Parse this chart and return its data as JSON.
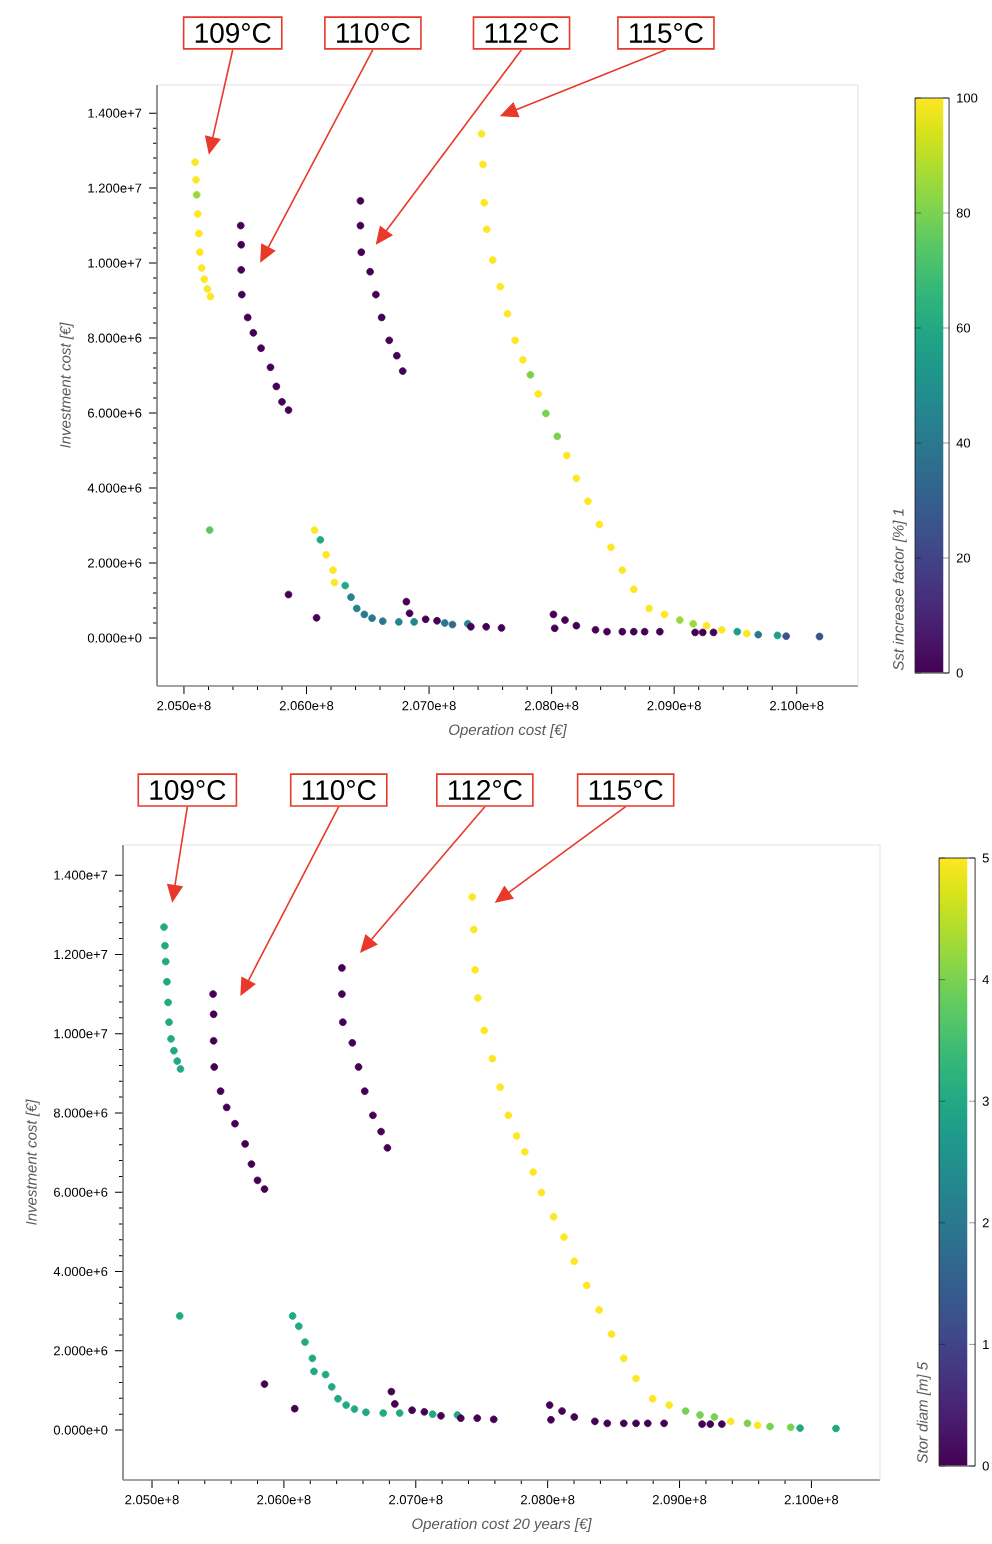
{
  "chart_data": [
    {
      "type": "scatter",
      "xlabel": "Operation cost [€]",
      "ylabel": "Investment cost [€]",
      "clabel": "Sst increase factor [%] 1",
      "marker": "circle",
      "xlim": [
        204780000.0,
        210500000.0
      ],
      "ylim": [
        -1280000.0,
        14750000.0
      ],
      "xticks": [
        {
          "value": 205000000.0,
          "label": "2.050e+8"
        },
        {
          "value": 206000000.0,
          "label": "2.060e+8"
        },
        {
          "value": 207000000.0,
          "label": "2.070e+8"
        },
        {
          "value": 208000000.0,
          "label": "2.080e+8"
        },
        {
          "value": 209000000.0,
          "label": "2.090e+8"
        },
        {
          "value": 210000000.0,
          "label": "2.100e+8"
        }
      ],
      "yticks": [
        {
          "value": 0,
          "label": "0.000e+0"
        },
        {
          "value": 2000000.0,
          "label": "2.000e+6"
        },
        {
          "value": 4000000.0,
          "label": "4.000e+6"
        },
        {
          "value": 6000000.0,
          "label": "6.000e+6"
        },
        {
          "value": 8000000.0,
          "label": "8.000e+6"
        },
        {
          "value": 10000000.0,
          "label": "1.000e+7"
        },
        {
          "value": 12000000.0,
          "label": "1.200e+7"
        },
        {
          "value": 14000000.0,
          "label": "1.400e+7"
        }
      ],
      "clim": [
        0,
        100
      ],
      "cticks": [
        0,
        20,
        40,
        60,
        80,
        100
      ],
      "annotations": [
        "109°C",
        "110°C",
        "112°C",
        "115°C"
      ],
      "x": [
        205091000.0,
        205098000.0,
        205104000.0,
        205113000.0,
        205122000.0,
        205129000.0,
        205144000.0,
        205166000.0,
        205191000.0,
        205216000.0,
        205210000.0,
        205463000.0,
        205467000.0,
        205467000.0,
        205472000.0,
        205520000.0,
        205566000.0,
        205629000.0,
        205706000.0,
        205754000.0,
        205800000.0,
        205853000.0,
        206440000.0,
        206440000.0,
        206447000.0,
        206519000.0,
        206566000.0,
        206613000.0,
        206675000.0,
        206737000.0,
        206785000.0,
        207428000.0,
        207440000.0,
        207450000.0,
        207471000.0,
        207519000.0,
        207581000.0,
        207640000.0,
        207702000.0,
        207765000.0,
        207827000.0,
        207890000.0,
        207953000.0,
        208046000.0,
        208124000.0,
        208202000.0,
        208296000.0,
        208390000.0,
        208484000.0,
        208577000.0,
        208670000.0,
        208796000.0,
        208921000.0,
        209046000.0,
        209155000.0,
        209264000.0,
        209389000.0,
        209515000.0,
        209592000.0,
        209686000.0,
        209843000.0,
        209914000.0,
        210186000.0,
        206066000.0,
        206113000.0,
        206160000.0,
        206216000.0,
        206228000.0,
        206316000.0,
        206363000.0,
        206410000.0,
        206472000.0,
        206535000.0,
        206622000.0,
        206753000.0,
        206878000.0,
        206972000.0,
        207065000.0,
        207128000.0,
        207191000.0,
        207316000.0,
        207341000.0,
        207466000.0,
        207591000.0,
        205853000.0,
        206082000.0,
        206815000.0,
        206841000.0,
        208015000.0,
        208109000.0,
        208202000.0,
        208025000.0,
        208358000.0,
        208452000.0,
        208577000.0,
        208670000.0,
        208759000.0,
        208883000.0,
        209171000.0,
        209233000.0,
        209321000.0
      ],
      "values": [
        12690000.0,
        12220000.0,
        11820000.0,
        11310000.0,
        10790000.0,
        10290000.0,
        9870000.0,
        9570000.0,
        9310000.0,
        9110000.0,
        2880000.0,
        11000000.0,
        10490000.0,
        9820000.0,
        9160000.0,
        8550000.0,
        8140000.0,
        7730000.0,
        7220000.0,
        6710000.0,
        6300000.0,
        6080000.0,
        11660000.0,
        11000000.0,
        10290000.0,
        9770000.0,
        9160000.0,
        8550000.0,
        7940000.0,
        7530000.0,
        7120000.0,
        13450000.0,
        12630000.0,
        11610000.0,
        10900000.0,
        10080000.0,
        9370000.0,
        8650000.0,
        7940000.0,
        7420000.0,
        7020000.0,
        6510000.0,
        5990000.0,
        5380000.0,
        4870000.0,
        4260000.0,
        3650000.0,
        3030000.0,
        2420000.0,
        1810000.0,
        1300000.0,
        790000.0,
        630000.0,
        480000.0,
        380000.0,
        330000.0,
        220000.0,
        170000.0,
        120000.0,
        90000.0,
        70000.0,
        50000.0,
        40000.0,
        2880000.0,
        2620000.0,
        2220000.0,
        1810000.0,
        1480000.0,
        1400000.0,
        1090000.0,
        790000.0,
        630000.0,
        530000.0,
        450000.0,
        430000.0,
        430000.0,
        500000.0,
        460000.0,
        400000.0,
        360000.0,
        380000.0,
        300000.0,
        300000.0,
        270000.0,
        1160000.0,
        540000.0,
        970000.0,
        660000.0,
        630000.0,
        480000.0,
        330000.0,
        260000.0,
        220000.0,
        170000.0,
        170000.0,
        170000.0,
        170000.0,
        170000.0,
        150000.0,
        150000.0,
        150000.0
      ],
      "cvalues": [
        100,
        100,
        85,
        100,
        100,
        100,
        100,
        100,
        100,
        100,
        75,
        0,
        0,
        0,
        0,
        0,
        0,
        0,
        0,
        0,
        0,
        0,
        0,
        0,
        0,
        0,
        0,
        0,
        0,
        0,
        0,
        100,
        100,
        100,
        100,
        100,
        100,
        100,
        100,
        100,
        80,
        100,
        80,
        80,
        100,
        100,
        100,
        100,
        100,
        100,
        100,
        100,
        100,
        85,
        85,
        100,
        100,
        55,
        100,
        40,
        55,
        25,
        25,
        100,
        60,
        100,
        100,
        100,
        60,
        45,
        45,
        40,
        40,
        40,
        45,
        45,
        0,
        0,
        40,
        35,
        45,
        0,
        0,
        0,
        0,
        0,
        0,
        0,
        0,
        0,
        0,
        0,
        0,
        0,
        0,
        0,
        0,
        0,
        0,
        0,
        0
      ]
    },
    {
      "type": "scatter",
      "xlabel": "Operation cost 20 years [€]",
      "ylabel": "Investment cost [€]",
      "clabel": "Stor diam [m] 5",
      "marker": "circle",
      "xlim": [
        204780000.0,
        210520000.0
      ],
      "ylim": [
        -1260000.0,
        14760000.0
      ],
      "xticks": [
        {
          "value": 205000000.0,
          "label": "2.050e+8"
        },
        {
          "value": 206000000.0,
          "label": "2.060e+8"
        },
        {
          "value": 207000000.0,
          "label": "2.070e+8"
        },
        {
          "value": 208000000.0,
          "label": "2.080e+8"
        },
        {
          "value": 209000000.0,
          "label": "2.090e+8"
        },
        {
          "value": 210000000.0,
          "label": "2.100e+8"
        }
      ],
      "yticks": [
        {
          "value": 0,
          "label": "0.000e+0"
        },
        {
          "value": 2000000.0,
          "label": "2.000e+6"
        },
        {
          "value": 4000000.0,
          "label": "4.000e+6"
        },
        {
          "value": 6000000.0,
          "label": "6.000e+6"
        },
        {
          "value": 8000000.0,
          "label": "8.000e+6"
        },
        {
          "value": 10000000.0,
          "label": "1.000e+7"
        },
        {
          "value": 12000000.0,
          "label": "1.200e+7"
        },
        {
          "value": 14000000.0,
          "label": "1.400e+7"
        }
      ],
      "clim": [
        0,
        5
      ],
      "cticks": [
        0,
        1,
        2,
        3,
        4,
        5
      ],
      "annotations": [
        "109°C",
        "110°C",
        "112°C",
        "115°C"
      ],
      "x": [
        205091000.0,
        205098000.0,
        205104000.0,
        205113000.0,
        205122000.0,
        205129000.0,
        205144000.0,
        205166000.0,
        205191000.0,
        205216000.0,
        205210000.0,
        205463000.0,
        205467000.0,
        205467000.0,
        205472000.0,
        205520000.0,
        205566000.0,
        205629000.0,
        205706000.0,
        205754000.0,
        205800000.0,
        205853000.0,
        206440000.0,
        206440000.0,
        206447000.0,
        206519000.0,
        206566000.0,
        206613000.0,
        206675000.0,
        206737000.0,
        206785000.0,
        207428000.0,
        207440000.0,
        207450000.0,
        207471000.0,
        207519000.0,
        207581000.0,
        207640000.0,
        207702000.0,
        207765000.0,
        207827000.0,
        207890000.0,
        207953000.0,
        208046000.0,
        208124000.0,
        208202000.0,
        208296000.0,
        208390000.0,
        208484000.0,
        208577000.0,
        208670000.0,
        208796000.0,
        208921000.0,
        209046000.0,
        209155000.0,
        209264000.0,
        209389000.0,
        209515000.0,
        209592000.0,
        209686000.0,
        209843000.0,
        209914000.0,
        210186000.0,
        206066000.0,
        206113000.0,
        206160000.0,
        206216000.0,
        206228000.0,
        206316000.0,
        206363000.0,
        206410000.0,
        206472000.0,
        206535000.0,
        206622000.0,
        206753000.0,
        206878000.0,
        206972000.0,
        207065000.0,
        207128000.0,
        207191000.0,
        207316000.0,
        207341000.0,
        207466000.0,
        207591000.0,
        205853000.0,
        206082000.0,
        206815000.0,
        206841000.0,
        208015000.0,
        208109000.0,
        208202000.0,
        208025000.0,
        208358000.0,
        208452000.0,
        208577000.0,
        208670000.0,
        208759000.0,
        208883000.0,
        209171000.0,
        209233000.0,
        209321000.0
      ],
      "values": [
        12690000.0,
        12220000.0,
        11820000.0,
        11310000.0,
        10790000.0,
        10290000.0,
        9870000.0,
        9570000.0,
        9310000.0,
        9110000.0,
        2880000.0,
        11000000.0,
        10490000.0,
        9820000.0,
        9160000.0,
        8550000.0,
        8140000.0,
        7730000.0,
        7220000.0,
        6710000.0,
        6300000.0,
        6080000.0,
        11660000.0,
        11000000.0,
        10290000.0,
        9770000.0,
        9160000.0,
        8550000.0,
        7940000.0,
        7530000.0,
        7120000.0,
        13450000.0,
        12630000.0,
        11610000.0,
        10900000.0,
        10080000.0,
        9370000.0,
        8650000.0,
        7940000.0,
        7420000.0,
        7020000.0,
        6510000.0,
        5990000.0,
        5380000.0,
        4870000.0,
        4260000.0,
        3650000.0,
        3030000.0,
        2420000.0,
        1810000.0,
        1300000.0,
        790000.0,
        630000.0,
        480000.0,
        380000.0,
        330000.0,
        220000.0,
        170000.0,
        120000.0,
        90000.0,
        70000.0,
        50000.0,
        40000.0,
        2880000.0,
        2620000.0,
        2220000.0,
        1810000.0,
        1480000.0,
        1400000.0,
        1090000.0,
        790000.0,
        630000.0,
        530000.0,
        450000.0,
        430000.0,
        430000.0,
        500000.0,
        460000.0,
        400000.0,
        360000.0,
        380000.0,
        300000.0,
        300000.0,
        270000.0,
        1160000.0,
        540000.0,
        970000.0,
        660000.0,
        630000.0,
        480000.0,
        330000.0,
        260000.0,
        220000.0,
        170000.0,
        170000.0,
        170000.0,
        170000.0,
        170000.0,
        150000.0,
        150000.0,
        150000.0
      ],
      "cvalues": [
        3,
        3,
        3,
        3,
        3,
        3,
        3,
        3,
        3,
        3,
        3,
        0,
        0,
        0,
        0,
        0,
        0,
        0,
        0,
        0,
        0,
        0,
        0,
        0,
        0,
        0,
        0,
        0,
        0,
        0,
        0,
        5,
        5,
        5,
        5,
        5,
        5,
        5,
        5,
        5,
        5,
        5,
        5,
        5,
        5,
        5,
        5,
        5,
        5,
        5,
        5,
        5,
        5,
        4,
        4,
        4,
        5,
        4,
        5,
        4,
        4,
        3,
        3,
        3,
        3,
        3,
        3,
        3,
        3,
        3,
        3,
        3,
        3,
        3,
        3,
        3,
        0,
        0,
        3,
        0,
        3,
        0,
        0,
        0,
        0,
        0,
        0,
        0,
        0,
        0,
        0,
        0,
        0,
        0,
        0,
        0,
        0,
        0,
        0,
        0,
        0
      ]
    }
  ]
}
